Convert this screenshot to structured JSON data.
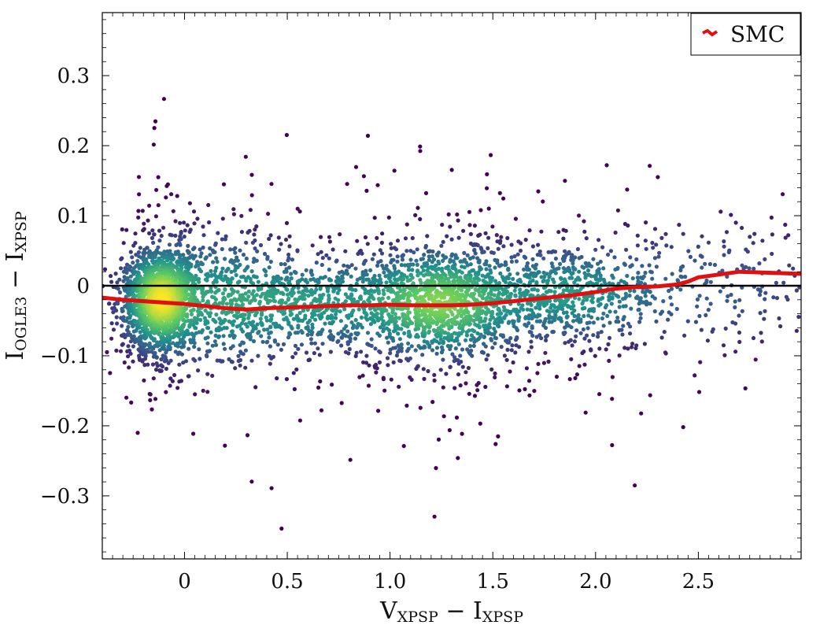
{
  "chart_data": {
    "type": "scatter",
    "title": "",
    "xlabel": {
      "main": "V",
      "sub": "XPSP",
      "sep": " − ",
      "main2": "I",
      "sub2": "XPSP"
    },
    "ylabel": {
      "main": "I",
      "sub": "OGLE3",
      "sep": " − ",
      "main2": "I",
      "sub2": "XPSP"
    },
    "xlim": [
      -0.4,
      3.0
    ],
    "ylim": [
      -0.39,
      0.39
    ],
    "xticks": [
      0,
      0.5,
      1.0,
      1.5,
      2.0,
      2.5
    ],
    "xtick_labels": [
      "0",
      "0.5",
      "1.0",
      "1.5",
      "2.0",
      "2.5"
    ],
    "yticks": [
      0.3,
      0.2,
      0.1,
      0,
      -0.1,
      -0.2,
      -0.3
    ],
    "ytick_labels": [
      "0.3",
      "0.2",
      "0.1",
      "0",
      "−0.1",
      "−0.2",
      "−0.3"
    ],
    "reference_line": {
      "y": 0,
      "color": "#000000"
    },
    "legend": {
      "position": "top-right",
      "entries": [
        "SMC"
      ]
    },
    "density": {
      "description": "2D density-colored scatter (viridis); dense clumps near x≈-0.15 and x≈1.25 at y≈-0.03",
      "clusters": [
        {
          "x": -0.12,
          "y": -0.02,
          "sx": 0.09,
          "sy": 0.035,
          "weight": 0.32
        },
        {
          "x": 0.15,
          "y": -0.02,
          "sx": 0.22,
          "sy": 0.05,
          "weight": 0.12
        },
        {
          "x": 0.65,
          "y": -0.025,
          "sx": 0.3,
          "sy": 0.035,
          "weight": 0.13
        },
        {
          "x": 1.25,
          "y": -0.025,
          "sx": 0.2,
          "sy": 0.04,
          "weight": 0.25
        },
        {
          "x": 1.85,
          "y": -0.012,
          "sx": 0.25,
          "sy": 0.035,
          "weight": 0.13
        },
        {
          "x": 2.55,
          "y": 0.0,
          "sx": 0.35,
          "sy": 0.05,
          "weight": 0.05
        }
      ],
      "colormap": [
        "#440154",
        "#3b528b",
        "#21918c",
        "#5ec962",
        "#fde725"
      ]
    },
    "series": [
      {
        "name": "SMC",
        "color": "#e01010",
        "x": [
          -0.4,
          -0.3,
          -0.2,
          -0.1,
          0.0,
          0.1,
          0.2,
          0.3,
          0.4,
          0.5,
          0.6,
          0.7,
          0.8,
          0.9,
          1.0,
          1.1,
          1.2,
          1.3,
          1.4,
          1.5,
          1.6,
          1.7,
          1.8,
          1.9,
          2.0,
          2.1,
          2.2,
          2.3,
          2.4,
          2.45,
          2.5,
          2.6,
          2.7,
          2.8,
          2.9,
          3.0
        ],
        "values": [
          -0.017,
          -0.02,
          -0.022,
          -0.024,
          -0.026,
          -0.029,
          -0.032,
          -0.034,
          -0.032,
          -0.031,
          -0.03,
          -0.029,
          -0.028,
          -0.028,
          -0.027,
          -0.028,
          -0.028,
          -0.028,
          -0.027,
          -0.025,
          -0.022,
          -0.019,
          -0.016,
          -0.013,
          -0.009,
          -0.004,
          -0.002,
          -0.001,
          0.002,
          0.006,
          0.012,
          0.016,
          0.02,
          0.019,
          0.018,
          0.017
        ]
      }
    ]
  }
}
